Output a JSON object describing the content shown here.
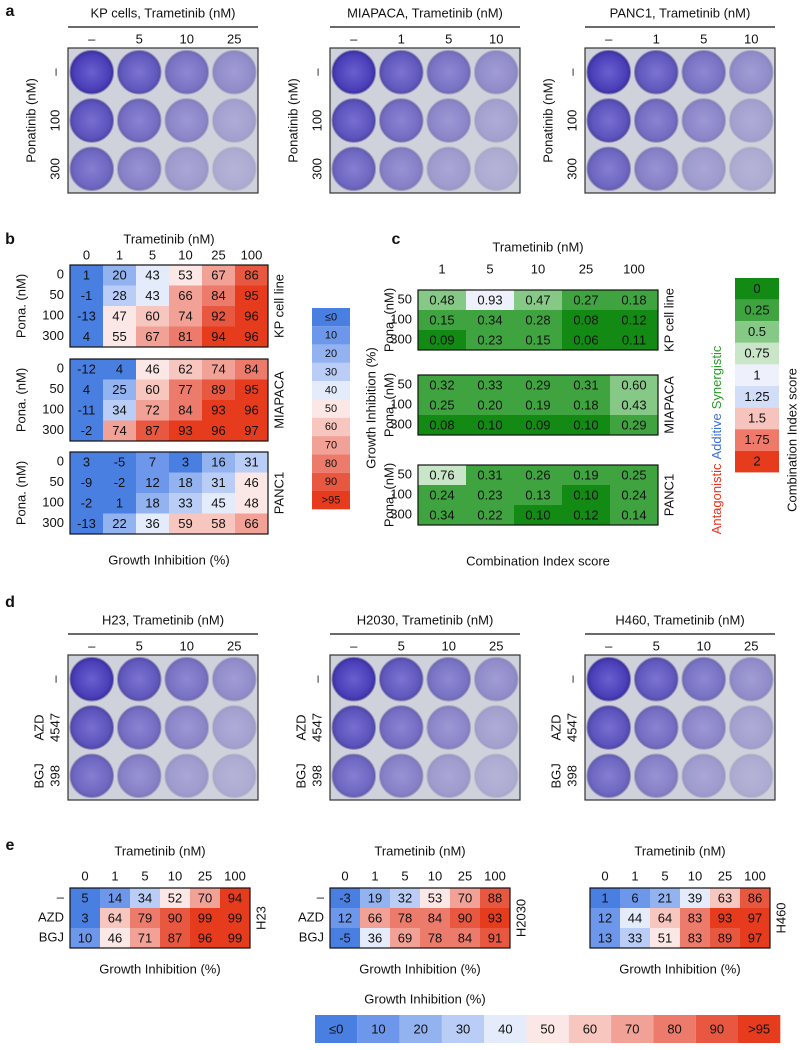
{
  "a": {
    "label": "a",
    "plates": [
      {
        "title": "KP cells, Trametinib (nM)",
        "columns": [
          "–",
          "5",
          "10",
          "25"
        ],
        "row_title": "Ponatinib (nM)",
        "rows": [
          "–",
          "100",
          "300"
        ]
      },
      {
        "title": "MIAPACA, Trametinib (nM)",
        "columns": [
          "–",
          "1",
          "5",
          "10"
        ],
        "row_title": "Ponatinib (nM)",
        "rows": [
          "–",
          "100",
          "300"
        ]
      },
      {
        "title": "PANC1, Trametinib (nM)",
        "columns": [
          "–",
          "1",
          "5",
          "10"
        ],
        "row_title": "Ponatinib (nM)",
        "rows": [
          "–",
          "100",
          "300"
        ]
      }
    ]
  },
  "b": {
    "label": "b",
    "x_title": "Trametinib (nM)",
    "columns": [
      "0",
      "1",
      "5",
      "10",
      "25",
      "100"
    ],
    "row_title": "Pona. (nM)",
    "footer": "Growth Inhibition (%)",
    "blocks": [
      {
        "name": "KP cell line",
        "rows": [
          "0",
          "50",
          "100",
          "300"
        ],
        "values": [
          [
            1,
            20,
            43,
            53,
            67,
            86
          ],
          [
            -1,
            28,
            43,
            66,
            84,
            95
          ],
          [
            -13,
            47,
            60,
            74,
            92,
            96
          ],
          [
            4,
            55,
            67,
            81,
            94,
            96
          ]
        ]
      },
      {
        "name": "MIAPACA",
        "rows": [
          "0",
          "50",
          "100",
          "300"
        ],
        "values": [
          [
            -12,
            4,
            46,
            62,
            74,
            84
          ],
          [
            4,
            25,
            60,
            77,
            89,
            95
          ],
          [
            -11,
            34,
            72,
            84,
            93,
            96
          ],
          [
            -2,
            74,
            87,
            93,
            96,
            97
          ]
        ]
      },
      {
        "name": "PANC1",
        "rows": [
          "0",
          "50",
          "100",
          "300"
        ],
        "values": [
          [
            3,
            -5,
            7,
            3,
            16,
            31
          ],
          [
            -9,
            -2,
            12,
            18,
            31,
            46
          ],
          [
            -2,
            1,
            18,
            33,
            45,
            48
          ],
          [
            -13,
            22,
            36,
            59,
            58,
            66
          ]
        ]
      }
    ]
  },
  "growth_legend": {
    "title": "Growth Inhibition (%)",
    "levels": [
      {
        "value": 0,
        "label": "≤0",
        "color": "#4a7fe2"
      },
      {
        "value": 10,
        "color": "#6d97ea"
      },
      {
        "value": 20,
        "color": "#93b2f0"
      },
      {
        "value": 30,
        "color": "#bacdf6"
      },
      {
        "value": 40,
        "color": "#e4ebfb"
      },
      {
        "value": 50,
        "color": "#fbe7e5"
      },
      {
        "value": 60,
        "color": "#f7c6bf"
      },
      {
        "value": 70,
        "color": "#f2a196"
      },
      {
        "value": 80,
        "color": "#ec7b6b"
      },
      {
        "value": 90,
        "color": "#e85841"
      },
      {
        "value": 95,
        "label": ">95",
        "color": "#e63b1c"
      }
    ]
  },
  "c": {
    "label": "c",
    "x_title": "Trametinib (nM)",
    "columns": [
      "1",
      "5",
      "10",
      "25",
      "100"
    ],
    "row_title": "Pona. (nM)",
    "footer": "Combination Index score",
    "blocks": [
      {
        "name": "KP cell line",
        "rows": [
          "50",
          "100",
          "300"
        ],
        "values": [
          [
            0.48,
            0.93,
            0.47,
            0.27,
            0.18
          ],
          [
            0.15,
            0.34,
            0.28,
            0.08,
            0.12
          ],
          [
            0.09,
            0.23,
            0.15,
            0.06,
            0.11
          ]
        ],
        "value_labels": [
          [
            "0.48",
            "0.93",
            "0.47",
            "0.27",
            "0.18"
          ],
          [
            "0.15",
            "0.34",
            "0.28",
            "0.08",
            "0.12"
          ],
          [
            "0.09",
            "0.23",
            "0.15",
            "0.06",
            "0.11"
          ]
        ]
      },
      {
        "name": "MIAPACA",
        "rows": [
          "50",
          "100",
          "300"
        ],
        "values": [
          [
            0.32,
            0.33,
            0.29,
            0.31,
            0.6
          ],
          [
            0.25,
            0.2,
            0.19,
            0.18,
            0.43
          ],
          [
            0.08,
            0.1,
            0.09,
            0.1,
            0.29
          ]
        ],
        "value_labels": [
          [
            "0.32",
            "0.33",
            "0.29",
            "0.31",
            "0.60"
          ],
          [
            "0.25",
            "0.20",
            "0.19",
            "0.18",
            "0.43"
          ],
          [
            "0.08",
            "0.10",
            "0.09",
            "0.10",
            "0.29"
          ]
        ]
      },
      {
        "name": "PANC1",
        "rows": [
          "50",
          "100",
          "300"
        ],
        "values": [
          [
            0.76,
            0.31,
            0.26,
            0.19,
            0.25
          ],
          [
            0.24,
            0.23,
            0.13,
            0.1,
            0.24
          ],
          [
            0.34,
            0.22,
            0.1,
            0.12,
            0.14
          ]
        ],
        "value_labels": [
          [
            "0.76",
            "0.31",
            "0.26",
            "0.19",
            "0.25"
          ],
          [
            "0.24",
            "0.23",
            "0.13",
            "0.10",
            "0.24"
          ],
          [
            "0.34",
            "0.22",
            "0.10",
            "0.12",
            "0.14"
          ]
        ]
      }
    ]
  },
  "ci_legend": {
    "title": "Combination Index score",
    "annotations": [
      {
        "text": "Antagonistic",
        "color": "#e6331f"
      },
      {
        "text": "Additive",
        "color": "#3b6fd8"
      },
      {
        "text": "Synergistic",
        "color": "#2a9a2a"
      }
    ],
    "levels": [
      {
        "value": 0,
        "color": "#138a13"
      },
      {
        "value": 0.25,
        "color": "#3fa43f"
      },
      {
        "value": 0.5,
        "color": "#86c886"
      },
      {
        "value": 0.75,
        "color": "#c9e6c9"
      },
      {
        "value": 1,
        "color": "#eef1fb"
      },
      {
        "value": 1.25,
        "color": "#d2ddf7"
      },
      {
        "value": 1.5,
        "color": "#f6c4bd"
      },
      {
        "value": 1.75,
        "color": "#ef7a6a"
      },
      {
        "value": 2,
        "color": "#e63b1c"
      }
    ]
  },
  "d": {
    "label": "d",
    "plates": [
      {
        "title": "H23, Trametinib (nM)",
        "columns": [
          "–",
          "5",
          "10",
          "25"
        ],
        "rows": [
          [
            "–"
          ],
          [
            "AZD",
            "4547"
          ],
          [
            "BGJ",
            "398"
          ]
        ]
      },
      {
        "title": "H2030, Trametinib (nM)",
        "columns": [
          "–",
          "5",
          "10",
          "25"
        ],
        "rows": [
          [
            "–"
          ],
          [
            "AZD",
            "4547"
          ],
          [
            "BGJ",
            "398"
          ]
        ]
      },
      {
        "title": "H460, Trametinib (nM)",
        "columns": [
          "–",
          "5",
          "10",
          "25"
        ],
        "rows": [
          [
            "–"
          ],
          [
            "AZD",
            "4547"
          ],
          [
            "BGJ",
            "398"
          ]
        ]
      }
    ]
  },
  "e": {
    "label": "e",
    "heatmaps": [
      {
        "name": "H23",
        "x_title": "Trametinib (nM)",
        "columns": [
          "0",
          "1",
          "5",
          "10",
          "25",
          "100"
        ],
        "rows": [
          "–",
          "AZD",
          "BGJ"
        ],
        "values": [
          [
            5,
            14,
            34,
            52,
            70,
            94
          ],
          [
            3,
            64,
            79,
            90,
            99,
            99
          ],
          [
            10,
            46,
            71,
            87,
            96,
            99
          ]
        ],
        "footer": "Growth Inhibition (%)"
      },
      {
        "name": "H2030",
        "x_title": "Trametinib (nM)",
        "columns": [
          "0",
          "1",
          "5",
          "10",
          "25",
          "100"
        ],
        "rows": [
          "–",
          "AZD",
          "BGJ"
        ],
        "values": [
          [
            -3,
            19,
            32,
            53,
            70,
            88
          ],
          [
            12,
            66,
            78,
            84,
            90,
            93
          ],
          [
            -5,
            36,
            69,
            78,
            84,
            91
          ]
        ],
        "footer": "Growth Inhibition (%)"
      },
      {
        "name": "H460",
        "x_title": "Trametinib (nM)",
        "columns": [
          "0",
          "1",
          "5",
          "10",
          "25",
          "100"
        ],
        "values": [
          [
            1,
            6,
            21,
            39,
            63,
            86
          ],
          [
            12,
            44,
            64,
            83,
            93,
            97
          ],
          [
            13,
            33,
            51,
            83,
            89,
            97
          ]
        ],
        "footer": "Growth Inhibition (%)"
      }
    ]
  }
}
